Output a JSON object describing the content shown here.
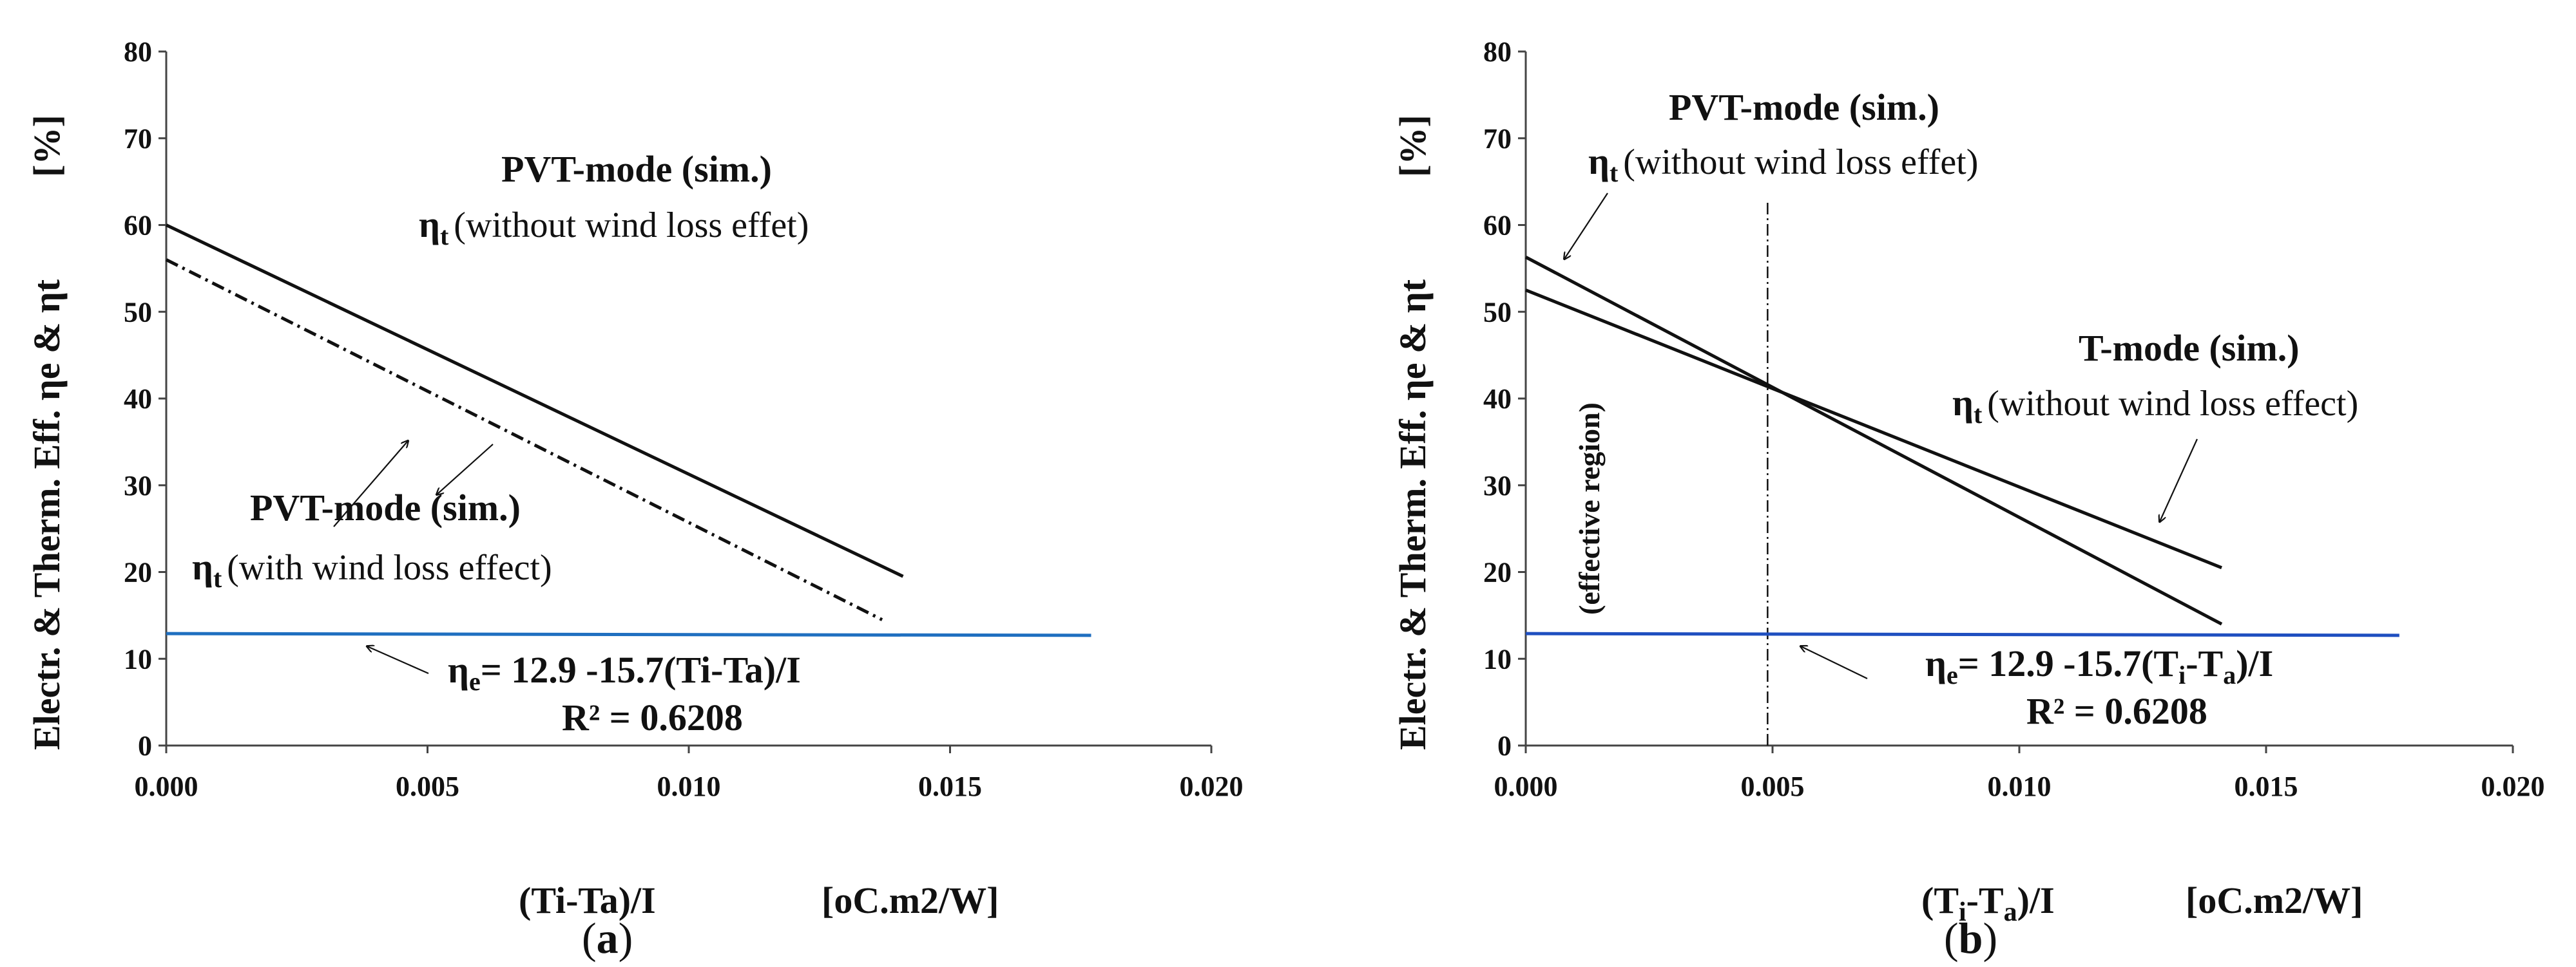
{
  "chart_data": [
    {
      "panel": "a",
      "type": "line",
      "caption": "(a)",
      "xlabel": "(Ti-Ta)/I",
      "xunit": "[oC.m2/W]",
      "ylabel": "Electr. & Therm. Eff. ηe & ηt",
      "yunit": "[%]",
      "xlim": [
        0.0,
        0.02
      ],
      "ylim": [
        0,
        80
      ],
      "xticks": [
        "0.000",
        "0.005",
        "0.010",
        "0.015",
        "0.020"
      ],
      "yticks": [
        "0",
        "10",
        "20",
        "30",
        "40",
        "50",
        "60",
        "70",
        "80"
      ],
      "grid": false,
      "series": [
        {
          "style": "solid",
          "color": "#111111",
          "x": [
            0.0,
            0.0141
          ],
          "y": [
            60.0,
            19.5
          ]
        },
        {
          "style": "dashdot",
          "color": "#111111",
          "x": [
            0.0,
            0.0137
          ],
          "y": [
            56.0,
            14.5
          ]
        },
        {
          "style": "solid",
          "color": "#1f6fc0",
          "x": [
            0.0,
            0.0177
          ],
          "y": [
            12.9,
            12.7
          ]
        }
      ],
      "annotations": {
        "upper_title": "PVT-mode (sim.)",
        "upper_text": "(without wind loss effet)",
        "lower_title": "PVT-mode (sim.)",
        "lower_text": "(with wind loss effect)",
        "eq_text": "= 12.9 -15.7(Ti-Ta)/I",
        "r2": "R² = 0.6208"
      }
    },
    {
      "panel": "b",
      "type": "line",
      "caption": "(b)",
      "xlabel": "(Ti-Ta)/I",
      "xunit": "[oC.m2/W]",
      "ylabel": "Electr. & Therm. Eff. ηe & ηt",
      "yunit": "[%]",
      "xlim": [
        0.0,
        0.02
      ],
      "ylim": [
        0,
        80
      ],
      "xticks": [
        "0.000",
        "0.005",
        "0.010",
        "0.015",
        "0.020"
      ],
      "yticks": [
        "0",
        "10",
        "20",
        "30",
        "40",
        "50",
        "60",
        "70",
        "80"
      ],
      "grid": false,
      "vline_x": 0.0049,
      "vline_label": "(effective region)",
      "series": [
        {
          "style": "solid",
          "color": "#111111",
          "x": [
            0.0,
            0.0141
          ],
          "y": [
            56.3,
            14.0
          ]
        },
        {
          "style": "solid",
          "color": "#111111",
          "x": [
            0.0,
            0.0141
          ],
          "y": [
            52.5,
            20.5
          ]
        },
        {
          "style": "solid",
          "color": "#1f4fc0",
          "x": [
            0.0,
            0.0177
          ],
          "y": [
            12.9,
            12.7
          ]
        }
      ],
      "annotations": {
        "upper_title": "PVT-mode (sim.)",
        "upper_text": "(without wind loss effet)",
        "tmode_title": "T-mode (sim.)",
        "tmode_text": "(without wind loss effect)",
        "eq_text": "= 12.9 -15.7(Ti-Ta)/I",
        "r2": "R² = 0.6208"
      }
    }
  ],
  "symbols": {
    "eta": "η",
    "sub_e": "e",
    "sub_t": "t",
    "sub_i": "i",
    "sub_a": "a"
  }
}
